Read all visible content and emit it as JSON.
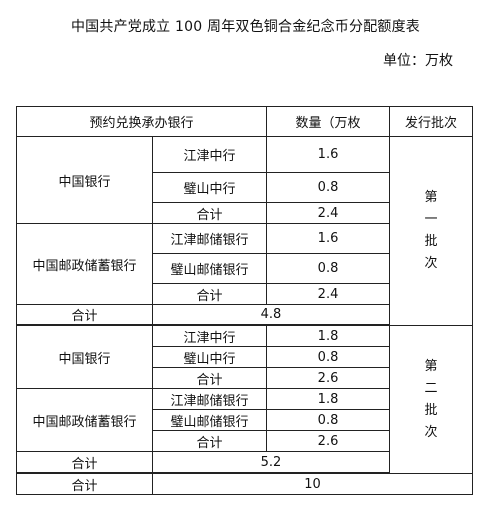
{
  "title": "中国共产党成立 100 周年双色铜合金纪念币分配额度表",
  "unit": "单位：万枚",
  "headers": {
    "bank": "预约兑换承办银行",
    "quantity": "数量（万枚",
    "batch": "发行批次"
  },
  "batch1": {
    "label": [
      "第",
      "一",
      "批",
      "次"
    ],
    "boc": {
      "name": "中国银行",
      "rows": [
        {
          "branch": "江津中行",
          "qty": "1.6"
        },
        {
          "branch": "璧山中行",
          "qty": "0.8"
        },
        {
          "branch": "合计",
          "qty": "2.4"
        }
      ]
    },
    "psbc": {
      "name": "中国邮政储蓄银行",
      "rows": [
        {
          "branch": "江津邮储银行",
          "qty": "1.6"
        },
        {
          "branch": "璧山邮储银行",
          "qty": "0.8"
        },
        {
          "branch": "合计",
          "qty": "2.4"
        }
      ]
    },
    "total": {
      "label": "合计",
      "qty": "4.8"
    }
  },
  "batch2": {
    "label": [
      "第",
      "二",
      "批",
      "次"
    ],
    "boc": {
      "name": "中国银行",
      "rows": [
        {
          "branch": "江津中行",
          "qty": "1.8"
        },
        {
          "branch": "璧山中行",
          "qty": "0.8"
        },
        {
          "branch": "合计",
          "qty": "2.6"
        }
      ]
    },
    "psbc": {
      "name": "中国邮政储蓄银行",
      "rows": [
        {
          "branch": "江津邮储银行",
          "qty": "1.8"
        },
        {
          "branch": "璧山邮储银行",
          "qty": "0.8"
        },
        {
          "branch": "合计",
          "qty": "2.6"
        }
      ]
    },
    "total": {
      "label": "合计",
      "qty": "5.2"
    }
  },
  "grand_total": {
    "label": "合计",
    "qty": "10"
  }
}
